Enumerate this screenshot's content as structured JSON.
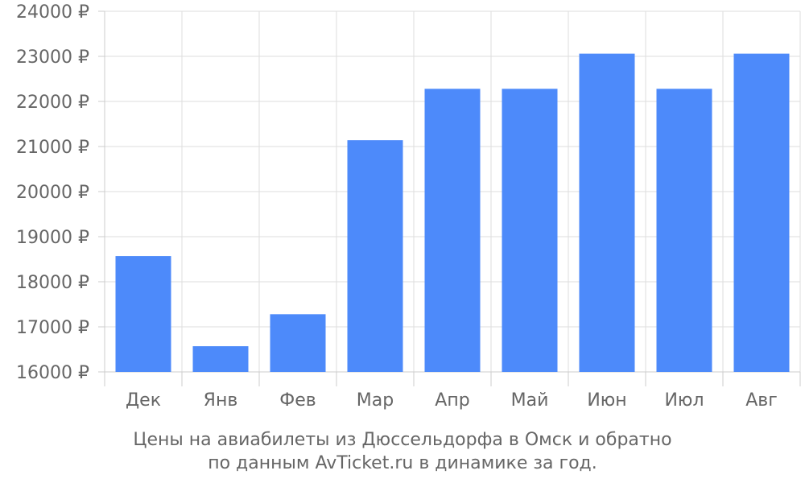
{
  "chart_data": {
    "type": "bar",
    "categories": [
      "Дек",
      "Янв",
      "Фев",
      "Мар",
      "Апр",
      "Май",
      "Июн",
      "Июл",
      "Авг"
    ],
    "values": [
      18570,
      16570,
      17280,
      21140,
      22280,
      22280,
      23060,
      22280,
      23060
    ],
    "ylim": [
      16000,
      24000
    ],
    "yticks": [
      16000,
      17000,
      18000,
      19000,
      20000,
      21000,
      22000,
      23000,
      24000
    ],
    "ytick_suffix": " ₽",
    "grid": true,
    "bar_color": "#4d8afa",
    "title": "",
    "xlabel": "",
    "ylabel": ""
  },
  "caption": {
    "line1": "Цены на авиабилеты из Дюссельдорфа в Омск и обратно",
    "line2": "по данным AvTicket.ru в динамике за год."
  }
}
